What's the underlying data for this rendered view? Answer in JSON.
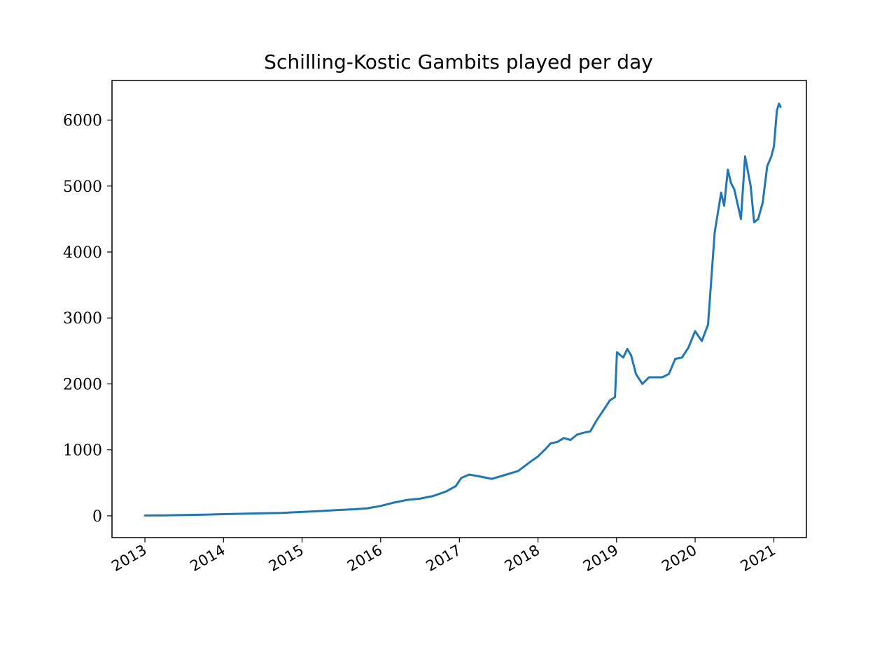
{
  "chart_data": {
    "type": "line",
    "title": "Schilling-Kostic Gambits played per day",
    "xlabel": "",
    "ylabel": "",
    "x_axis": "date",
    "xlim": [
      "2012-08-01",
      "2021-06-01"
    ],
    "ylim": [
      -330,
      6600
    ],
    "xticks": [
      "2013",
      "2014",
      "2015",
      "2016",
      "2017",
      "2018",
      "2019",
      "2020",
      "2021"
    ],
    "yticks": [
      0,
      1000,
      2000,
      3000,
      4000,
      5000,
      6000
    ],
    "grid": false,
    "legend": "none",
    "series": [
      {
        "color": "#1f77b4",
        "points": [
          [
            "2013-01-01",
            5
          ],
          [
            "2013-04-01",
            8
          ],
          [
            "2013-07-01",
            12
          ],
          [
            "2013-10-01",
            18
          ],
          [
            "2014-01-01",
            25
          ],
          [
            "2014-04-01",
            32
          ],
          [
            "2014-07-01",
            38
          ],
          [
            "2014-10-01",
            45
          ],
          [
            "2014-12-01",
            55
          ],
          [
            "2015-03-01",
            68
          ],
          [
            "2015-06-01",
            85
          ],
          [
            "2015-09-01",
            100
          ],
          [
            "2015-11-01",
            115
          ],
          [
            "2016-01-01",
            150
          ],
          [
            "2016-03-01",
            200
          ],
          [
            "2016-05-01",
            240
          ],
          [
            "2016-07-01",
            260
          ],
          [
            "2016-09-01",
            300
          ],
          [
            "2016-11-01",
            370
          ],
          [
            "2016-12-15",
            450
          ],
          [
            "2017-01-10",
            575
          ],
          [
            "2017-02-15",
            625
          ],
          [
            "2017-04-01",
            600
          ],
          [
            "2017-06-01",
            560
          ],
          [
            "2017-08-01",
            620
          ],
          [
            "2017-10-01",
            680
          ],
          [
            "2017-12-01",
            830
          ],
          [
            "2018-01-01",
            900
          ],
          [
            "2018-02-01",
            1000
          ],
          [
            "2018-03-01",
            1100
          ],
          [
            "2018-04-01",
            1120
          ],
          [
            "2018-05-01",
            1180
          ],
          [
            "2018-06-01",
            1150
          ],
          [
            "2018-07-01",
            1230
          ],
          [
            "2018-08-01",
            1260
          ],
          [
            "2018-09-01",
            1280
          ],
          [
            "2018-10-01",
            1450
          ],
          [
            "2018-11-01",
            1600
          ],
          [
            "2018-12-01",
            1750
          ],
          [
            "2018-12-25",
            1800
          ],
          [
            "2019-01-03",
            2480
          ],
          [
            "2019-02-01",
            2400
          ],
          [
            "2019-02-20",
            2530
          ],
          [
            "2019-03-10",
            2430
          ],
          [
            "2019-04-01",
            2150
          ],
          [
            "2019-05-01",
            2000
          ],
          [
            "2019-06-01",
            2100
          ],
          [
            "2019-07-01",
            2100
          ],
          [
            "2019-08-01",
            2100
          ],
          [
            "2019-09-01",
            2150
          ],
          [
            "2019-10-01",
            2380
          ],
          [
            "2019-11-01",
            2400
          ],
          [
            "2019-12-01",
            2550
          ],
          [
            "2020-01-01",
            2800
          ],
          [
            "2020-02-01",
            2650
          ],
          [
            "2020-03-01",
            2900
          ],
          [
            "2020-04-01",
            4300
          ],
          [
            "2020-05-01",
            4900
          ],
          [
            "2020-05-15",
            4700
          ],
          [
            "2020-06-01",
            5250
          ],
          [
            "2020-06-15",
            5050
          ],
          [
            "2020-07-01",
            4950
          ],
          [
            "2020-08-01",
            4500
          ],
          [
            "2020-08-20",
            5450
          ],
          [
            "2020-09-15",
            5000
          ],
          [
            "2020-10-01",
            4450
          ],
          [
            "2020-10-20",
            4500
          ],
          [
            "2020-11-10",
            4750
          ],
          [
            "2020-12-01",
            5300
          ],
          [
            "2020-12-20",
            5450
          ],
          [
            "2021-01-01",
            5600
          ],
          [
            "2021-01-15",
            6150
          ],
          [
            "2021-01-25",
            6250
          ],
          [
            "2021-02-01",
            6200
          ]
        ]
      }
    ]
  }
}
